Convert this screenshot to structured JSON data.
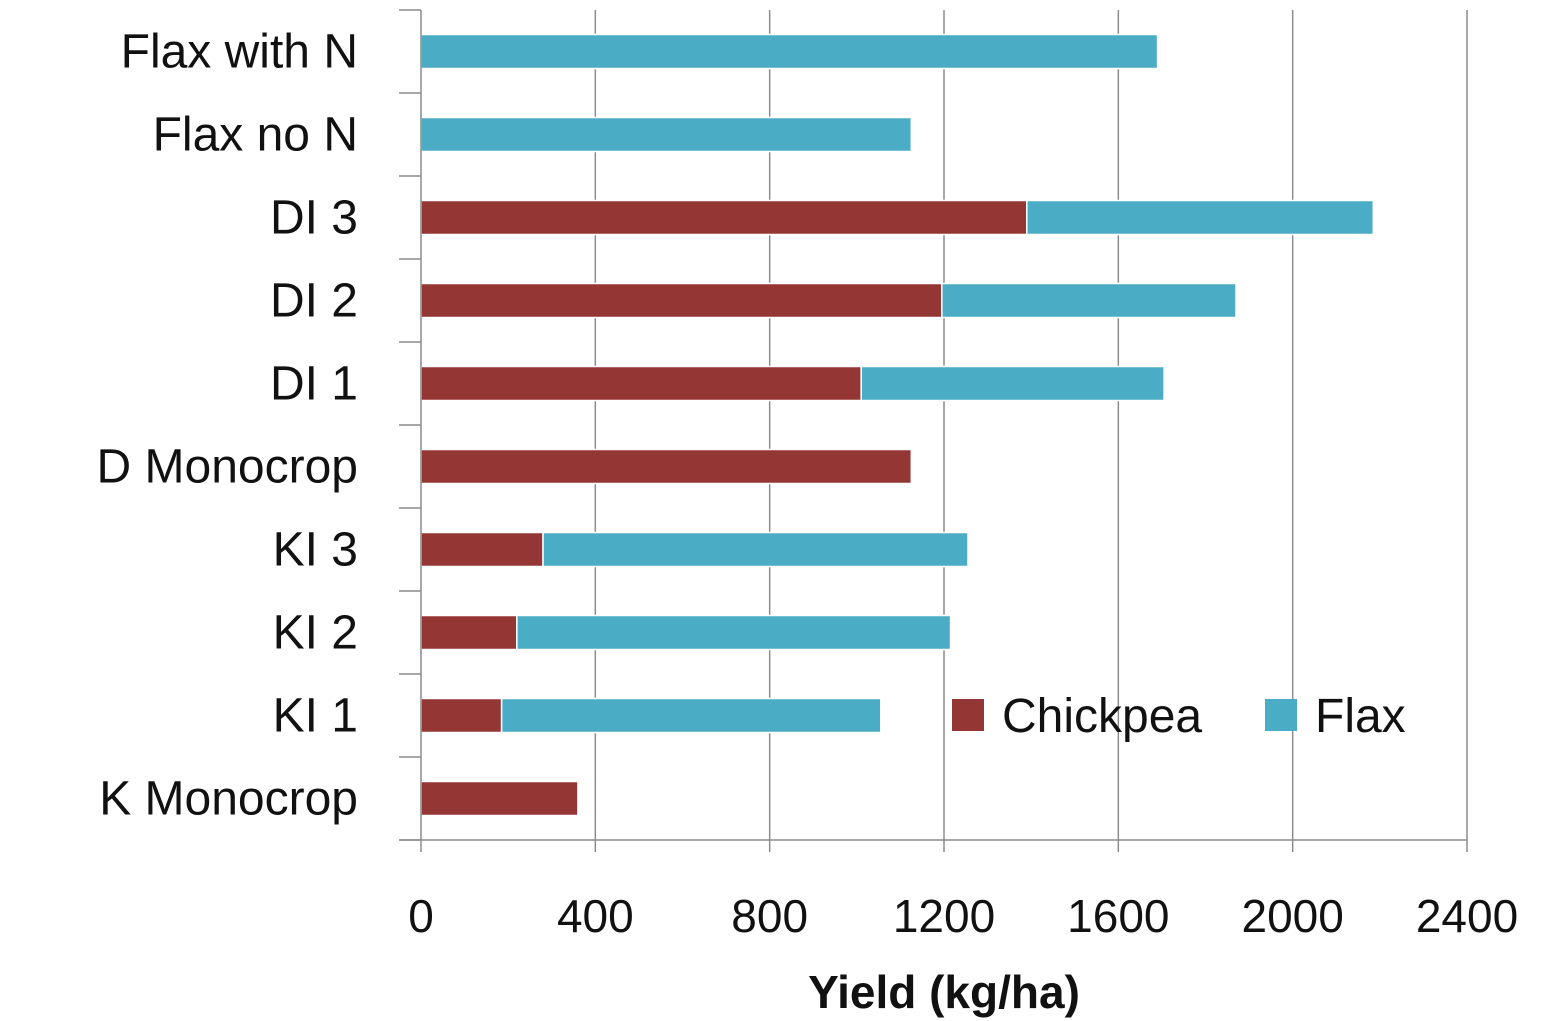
{
  "chart_data": {
    "type": "bar",
    "orientation": "horizontal",
    "stacked": true,
    "categories": [
      "Flax with N",
      "Flax no N",
      "DI 3",
      "DI 2",
      "DI 1",
      "D Monocrop",
      "KI 3",
      "KI 2",
      "KI 1",
      "K Monocrop"
    ],
    "series": [
      {
        "name": "Chickpea",
        "color": "#943634",
        "values": [
          0,
          0,
          1390,
          1195,
          1010,
          1125,
          280,
          220,
          185,
          360
        ]
      },
      {
        "name": "Flax",
        "color": "#4bacc6",
        "values": [
          1690,
          1125,
          795,
          675,
          695,
          0,
          975,
          995,
          870,
          0
        ]
      }
    ],
    "xlabel": "Yield (kg/ha)",
    "ylabel": "",
    "xlim": [
      0,
      2400
    ],
    "xticks": [
      "0",
      "400",
      "800",
      "1200",
      "1600",
      "2000",
      "2400"
    ],
    "grid": "vertical",
    "legend_position": "lower-right"
  }
}
